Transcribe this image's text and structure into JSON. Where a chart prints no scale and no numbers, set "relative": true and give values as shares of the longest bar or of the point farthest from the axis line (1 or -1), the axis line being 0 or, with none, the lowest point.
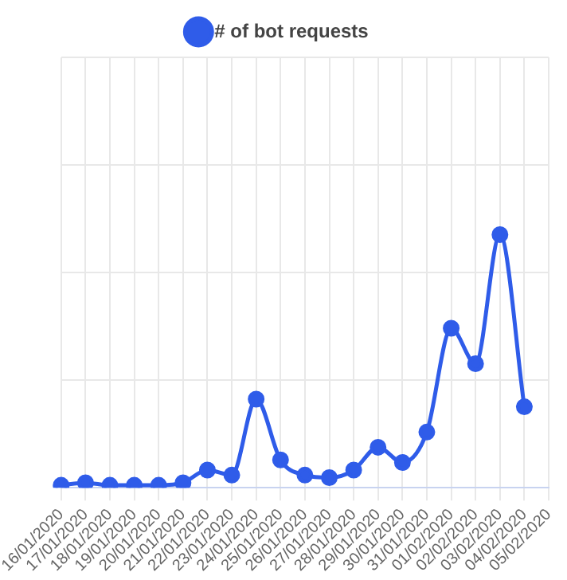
{
  "chart_data": {
    "type": "line",
    "relative": true,
    "legend": "top",
    "grid": true,
    "marker": "circle",
    "categories": [
      "16/01/2020",
      "17/01/2020",
      "18/01/2020",
      "19/01/2020",
      "20/01/2020",
      "21/01/2020",
      "22/01/2020",
      "23/01/2020",
      "24/01/2020",
      "25/01/2020",
      "26/01/2020",
      "27/01/2020",
      "28/01/2020",
      "29/01/2020",
      "30/01/2020",
      "31/01/2020",
      "01/02/2020",
      "02/02/2020",
      "03/02/2020",
      "04/02/2020",
      "05/02/2020"
    ],
    "series": [
      {
        "name": "# of bot requests",
        "color": "#2f5ce9",
        "values": [
          0.01,
          0.02,
          0.01,
          0.01,
          0.01,
          0.02,
          0.07,
          0.05,
          0.35,
          0.11,
          0.05,
          0.04,
          0.07,
          0.16,
          0.1,
          0.22,
          0.63,
          0.49,
          1,
          0.32,
          null
        ]
      }
    ]
  }
}
